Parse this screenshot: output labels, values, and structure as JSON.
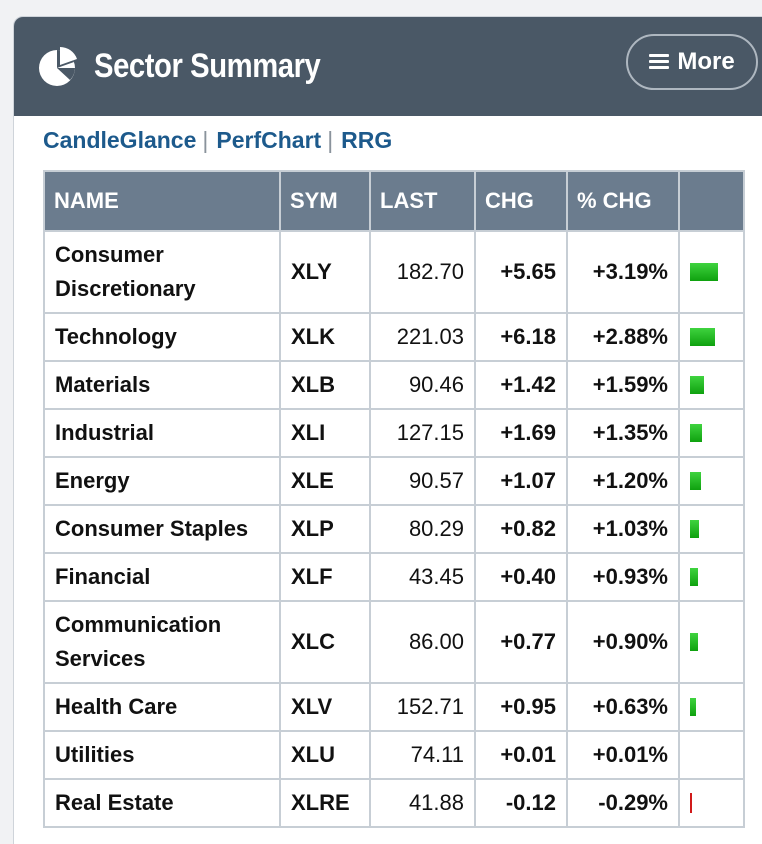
{
  "header": {
    "title": "Sector Summary",
    "icon": "pie-chart-icon",
    "more_label": "More"
  },
  "links": [
    {
      "label": "CandleGlance"
    },
    {
      "label": "PerfChart"
    },
    {
      "label": "RRG"
    }
  ],
  "table": {
    "columns": [
      "NAME",
      "SYM",
      "LAST",
      "CHG",
      "% CHG",
      ""
    ],
    "rows": [
      {
        "name": "Consumer Discretionary",
        "sym": "XLY",
        "last": "182.70",
        "chg": "+5.65",
        "pct": "+3.19%",
        "pct_value": 3.19
      },
      {
        "name": "Technology",
        "sym": "XLK",
        "last": "221.03",
        "chg": "+6.18",
        "pct": "+2.88%",
        "pct_value": 2.88
      },
      {
        "name": "Materials",
        "sym": "XLB",
        "last": "90.46",
        "chg": "+1.42",
        "pct": "+1.59%",
        "pct_value": 1.59
      },
      {
        "name": "Industrial",
        "sym": "XLI",
        "last": "127.15",
        "chg": "+1.69",
        "pct": "+1.35%",
        "pct_value": 1.35
      },
      {
        "name": "Energy",
        "sym": "XLE",
        "last": "90.57",
        "chg": "+1.07",
        "pct": "+1.20%",
        "pct_value": 1.2
      },
      {
        "name": "Consumer Staples",
        "sym": "XLP",
        "last": "80.29",
        "chg": "+0.82",
        "pct": "+1.03%",
        "pct_value": 1.03
      },
      {
        "name": "Financial",
        "sym": "XLF",
        "last": "43.45",
        "chg": "+0.40",
        "pct": "+0.93%",
        "pct_value": 0.93
      },
      {
        "name": "Communication Services",
        "sym": "XLC",
        "last": "86.00",
        "chg": "+0.77",
        "pct": "+0.90%",
        "pct_value": 0.9
      },
      {
        "name": "Health Care",
        "sym": "XLV",
        "last": "152.71",
        "chg": "+0.95",
        "pct": "+0.63%",
        "pct_value": 0.63
      },
      {
        "name": "Utilities",
        "sym": "XLU",
        "last": "74.11",
        "chg": "+0.01",
        "pct": "+0.01%",
        "pct_value": 0.01
      },
      {
        "name": "Real Estate",
        "sym": "XLRE",
        "last": "41.88",
        "chg": "-0.12",
        "pct": "-0.29%",
        "pct_value": -0.29
      }
    ]
  },
  "colors": {
    "header_bg": "#4a5866",
    "table_header_bg": "#6b7c8e",
    "link": "#1d5a8c",
    "positive": "#1f8a3b",
    "negative": "#d11a1a",
    "bar_positive": "#22c022"
  }
}
